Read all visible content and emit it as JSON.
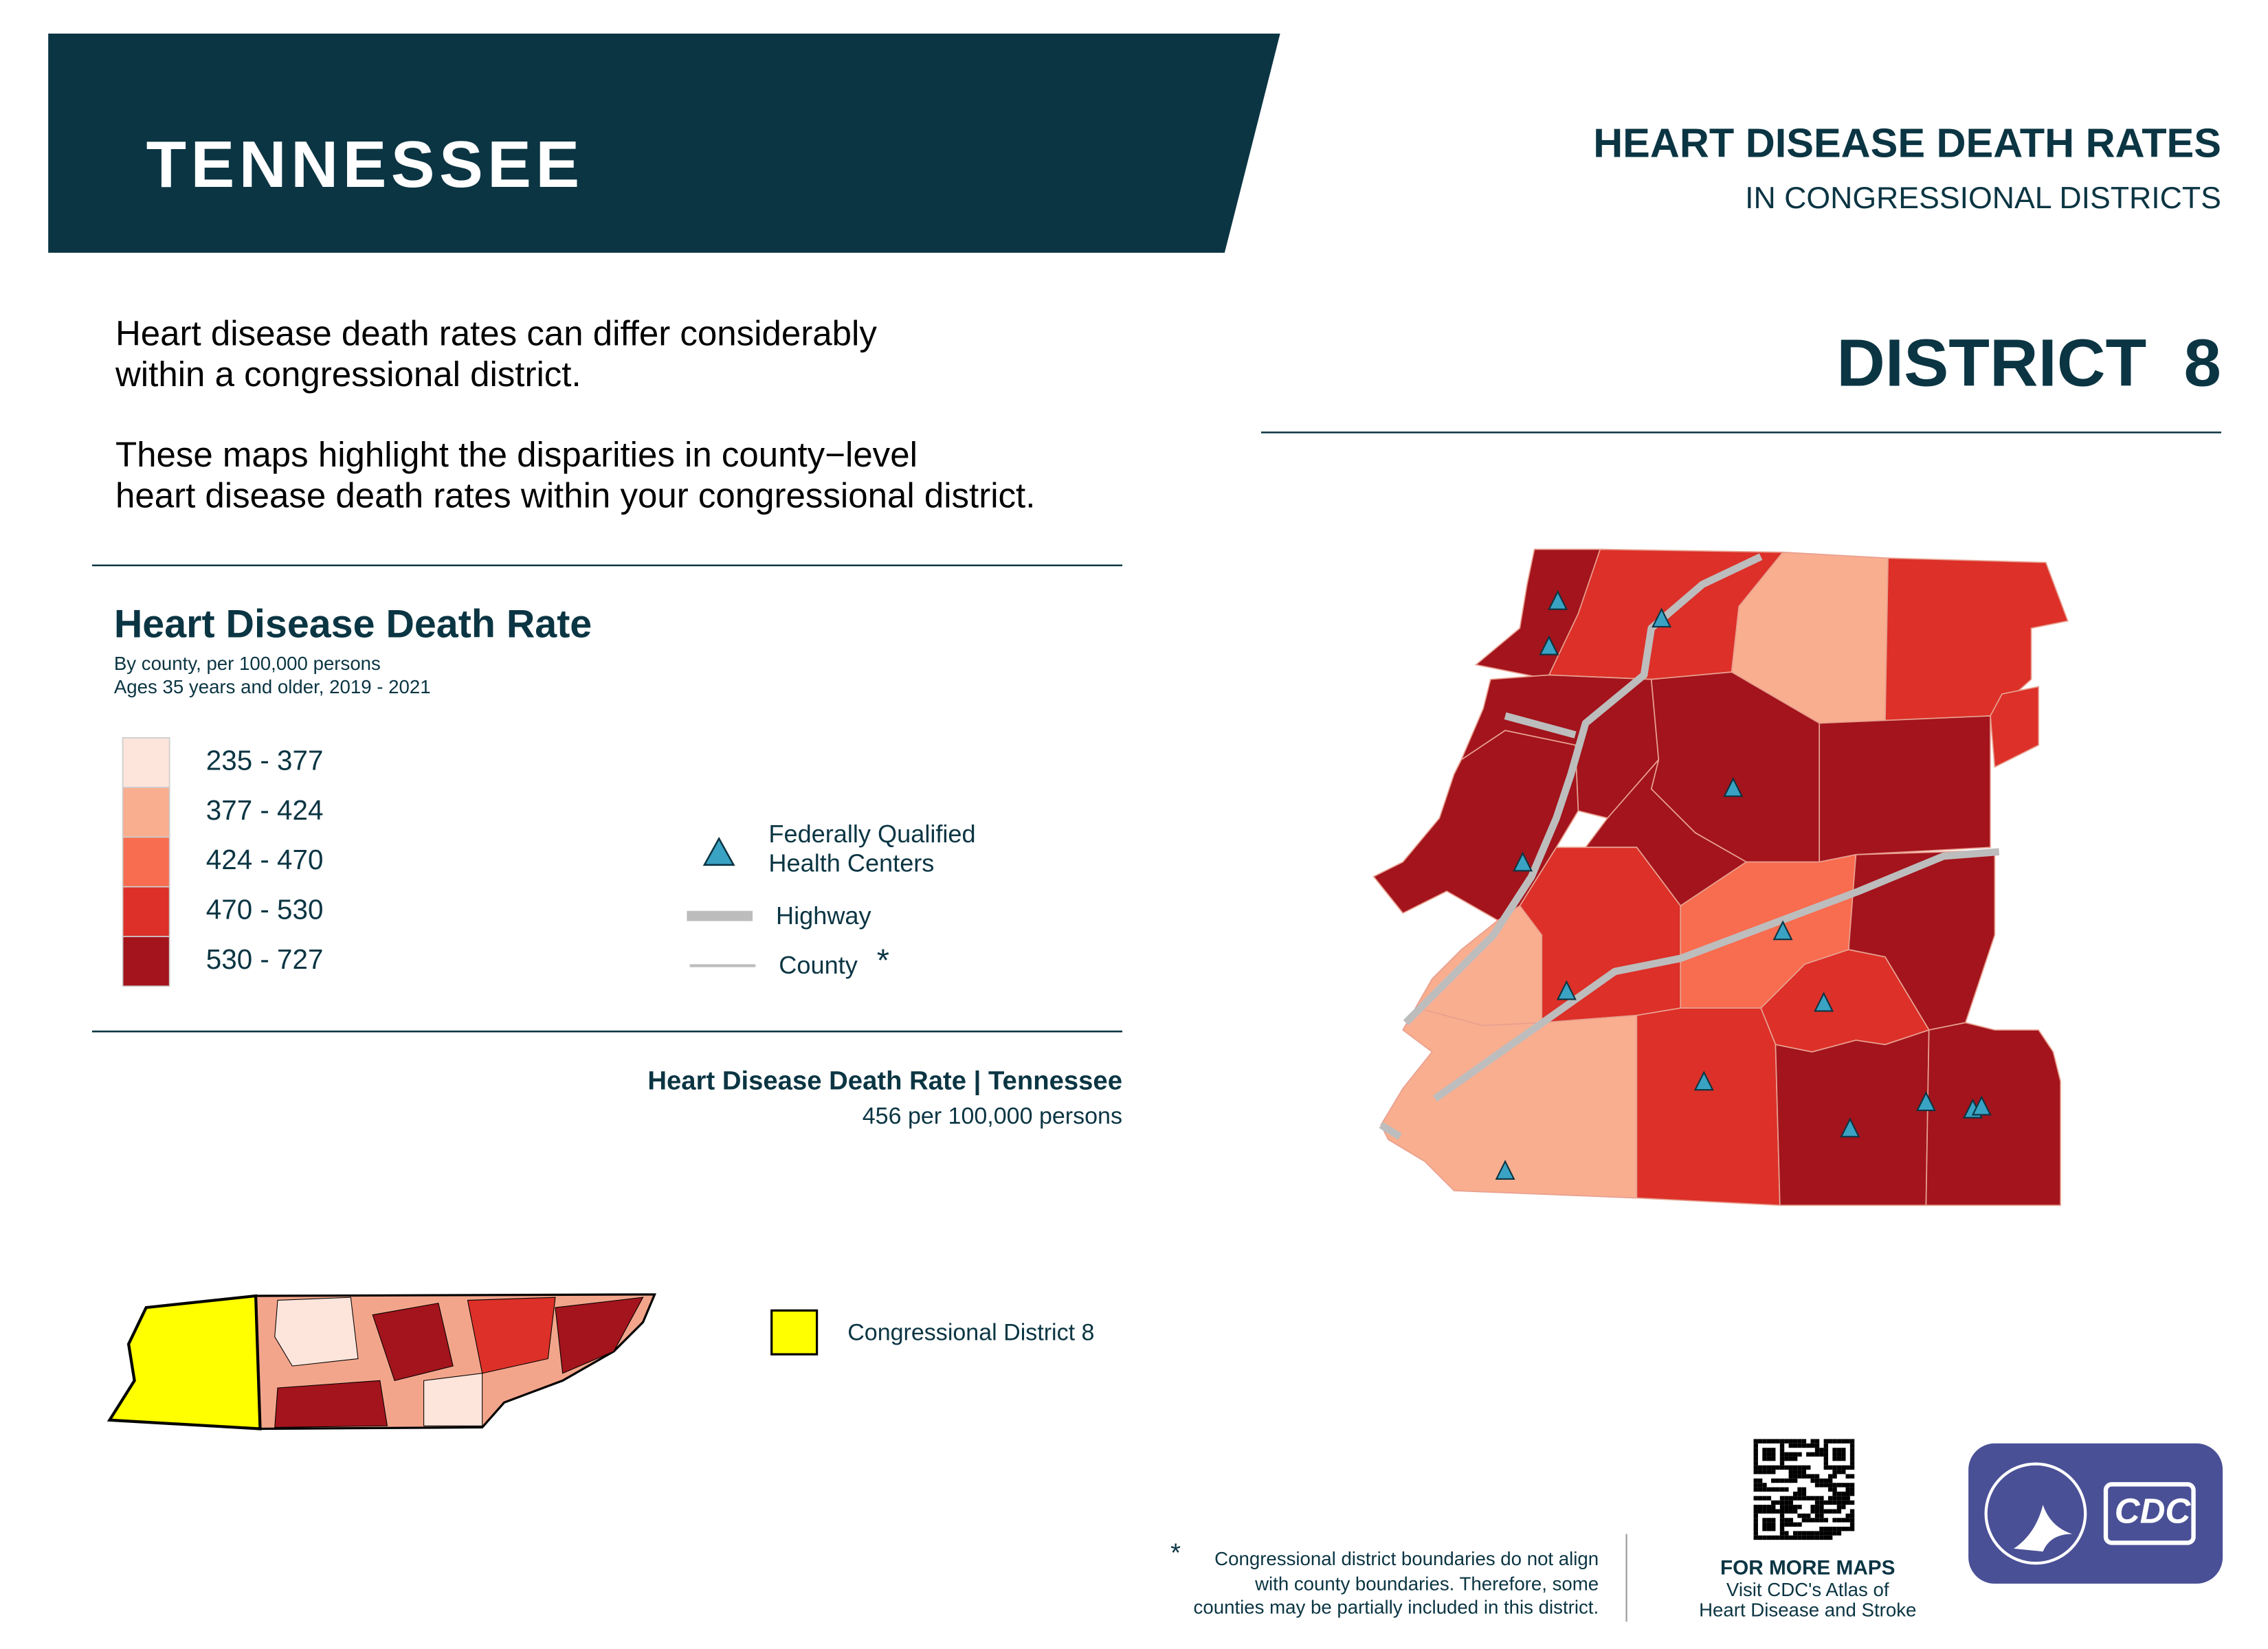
{
  "header": {
    "state": "TENNESSEE",
    "title": "HEART DISEASE DEATH RATES",
    "subtitle": "IN CONGRESSIONAL DISTRICTS",
    "district": "DISTRICT  8"
  },
  "intro": {
    "paragraph_1": [
      "Heart disease death rates can differ considerably",
      "within a congressional district."
    ],
    "paragraph_2": [
      "These maps highlight the disparities in county−level",
      "heart disease death rates within your congressional district."
    ]
  },
  "legend": {
    "title": "Heart Disease Death Rate",
    "subtitle": [
      "By county, per 100,000 persons",
      "Ages 35 years and older, 2019 - 2021"
    ],
    "classes": [
      {
        "label": "235 - 377",
        "color": "#fde5dc"
      },
      {
        "label": "377 - 424",
        "color": "#f9ae8f"
      },
      {
        "label": "424 - 470",
        "color": "#f86c4f"
      },
      {
        "label": "470 - 530",
        "color": "#dc3028"
      },
      {
        "label": "530 - 727",
        "color": "#a3141c"
      }
    ],
    "symbols": {
      "fqhc": [
        "Federally Qualified",
        "Health Centers"
      ],
      "highway": "Highway",
      "county": "County",
      "county_marker": "*"
    }
  },
  "state_rate": {
    "label": "Heart Disease Death Rate | Tennessee",
    "value": "456 per 100,000 persons"
  },
  "inset": {
    "legend": "Congressional District 8"
  },
  "footnote": {
    "marker": "*",
    "lines": [
      "Congressional district boundaries do not align",
      "with county boundaries. Therefore, some",
      "counties may be partially included in this district."
    ]
  },
  "more_maps": {
    "title": "FOR MORE MAPS",
    "lines": [
      "Visit CDC's Atlas of",
      "Heart Disease and Stroke"
    ]
  },
  "logo": "CDC"
}
